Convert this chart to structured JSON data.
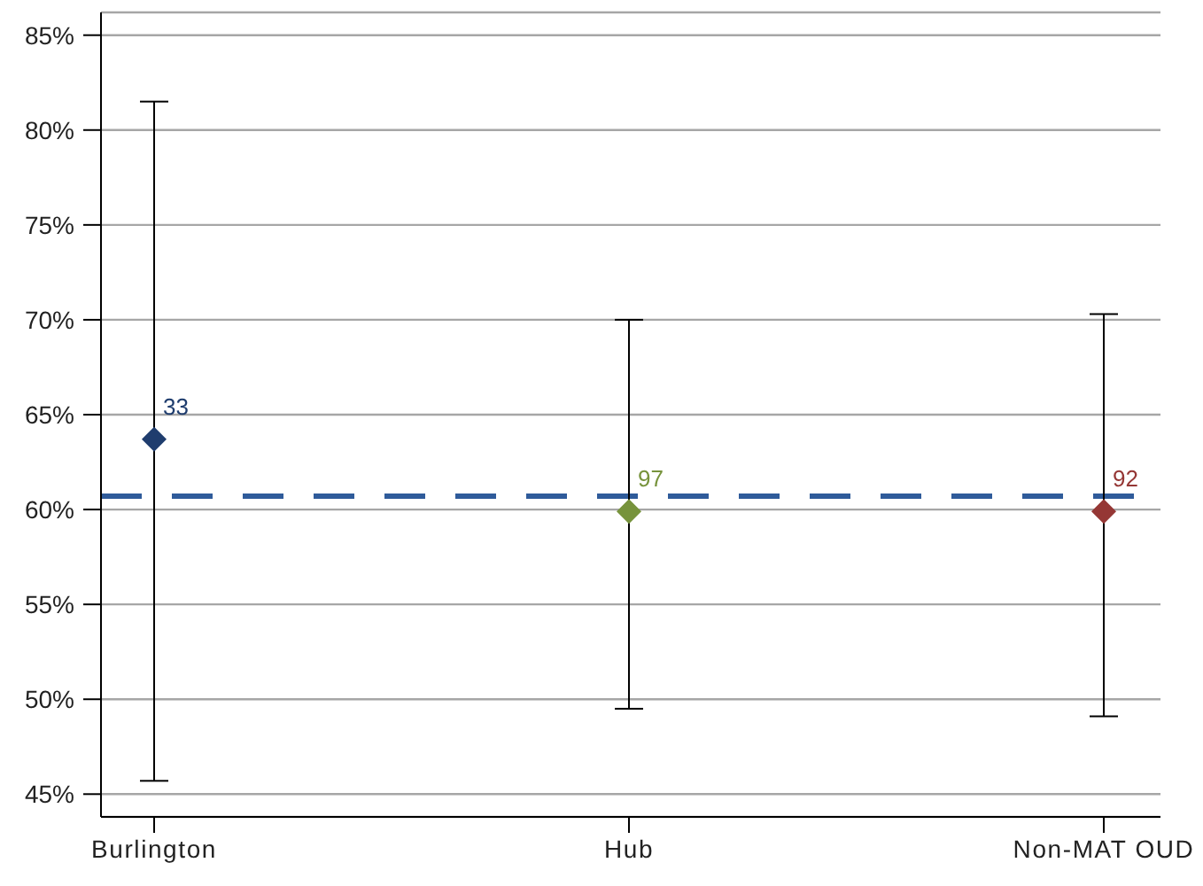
{
  "chart_data": {
    "type": "scatter",
    "categories": [
      "Burlington",
      "Hub",
      "Non-MAT OUD"
    ],
    "values": [
      63.7,
      59.9,
      59.9
    ],
    "colors": [
      "#1f3d6e",
      "#77933c",
      "#953735"
    ],
    "errors": [
      [
        45.7,
        81.5
      ],
      [
        49.5,
        70.0
      ],
      [
        49.1,
        70.3
      ]
    ],
    "annotations": [
      {
        "text": "33",
        "x": "Burlington",
        "y": 63.7
      },
      {
        "text": "97",
        "x": "Hub",
        "y": 59.9
      },
      {
        "text": "92",
        "x": "Non-MAT OUD",
        "y": 59.9
      }
    ],
    "ylim": [
      43.8,
      86.2
    ],
    "yticks": [
      {
        "value": 45,
        "label": "45%"
      },
      {
        "value": 50,
        "label": "50%"
      },
      {
        "value": 55,
        "label": "55%"
      },
      {
        "value": 60,
        "label": "60%"
      },
      {
        "value": 65,
        "label": "65%"
      },
      {
        "value": 70,
        "label": "70%"
      },
      {
        "value": 75,
        "label": "75%"
      },
      {
        "value": 80,
        "label": "80%"
      },
      {
        "value": 85,
        "label": "85%"
      }
    ],
    "grid": "y",
    "marker": "diamond",
    "ref_lines": [
      {
        "axis": "y",
        "value": 60.7,
        "color": "#2f5b9a",
        "line_style": "dashed"
      }
    ]
  }
}
